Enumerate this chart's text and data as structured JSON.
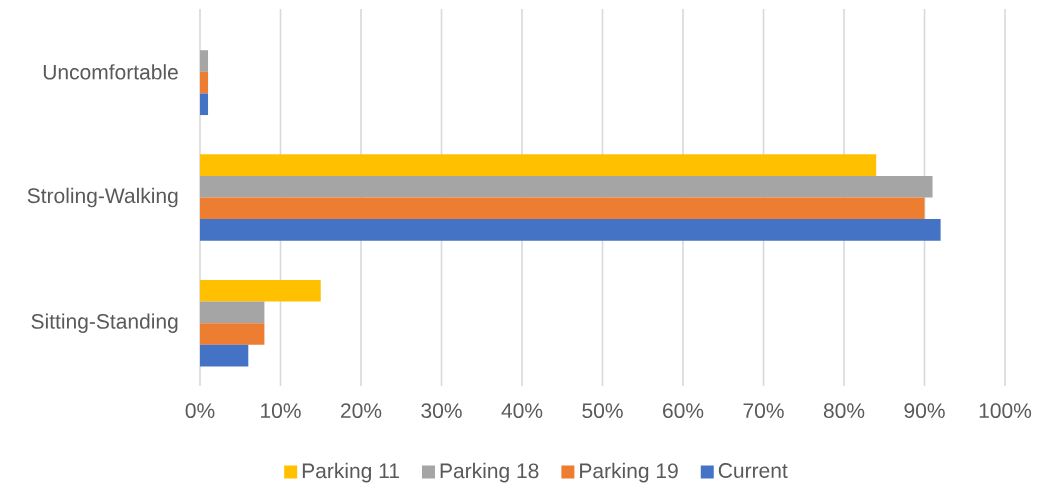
{
  "chart_data": {
    "type": "bar",
    "orientation": "horizontal",
    "categories": [
      "Uncomfortable",
      "Stroling-Walking",
      "Sitting-Standing"
    ],
    "series": [
      {
        "name": "Parking 11",
        "color": "#ffc000",
        "values": [
          0,
          84,
          15
        ]
      },
      {
        "name": "Parking 18",
        "color": "#a5a5a5",
        "values": [
          1,
          91,
          8
        ]
      },
      {
        "name": "Parking 19",
        "color": "#ed7d31",
        "values": [
          1,
          90,
          8
        ]
      },
      {
        "name": "Current",
        "color": "#4472c4",
        "values": [
          1,
          92,
          6
        ]
      }
    ],
    "xlim": [
      0,
      100
    ],
    "xticks": [
      {
        "value": 0,
        "label": "0%"
      },
      {
        "value": 10,
        "label": "10%"
      },
      {
        "value": 20,
        "label": "20%"
      },
      {
        "value": 30,
        "label": "30%"
      },
      {
        "value": 40,
        "label": "40%"
      },
      {
        "value": 50,
        "label": "50%"
      },
      {
        "value": 60,
        "label": "60%"
      },
      {
        "value": 70,
        "label": "70%"
      },
      {
        "value": 80,
        "label": "80%"
      },
      {
        "value": 90,
        "label": "90%"
      },
      {
        "value": 100,
        "label": "100%"
      }
    ],
    "grid": "x",
    "legend": "bottom"
  }
}
